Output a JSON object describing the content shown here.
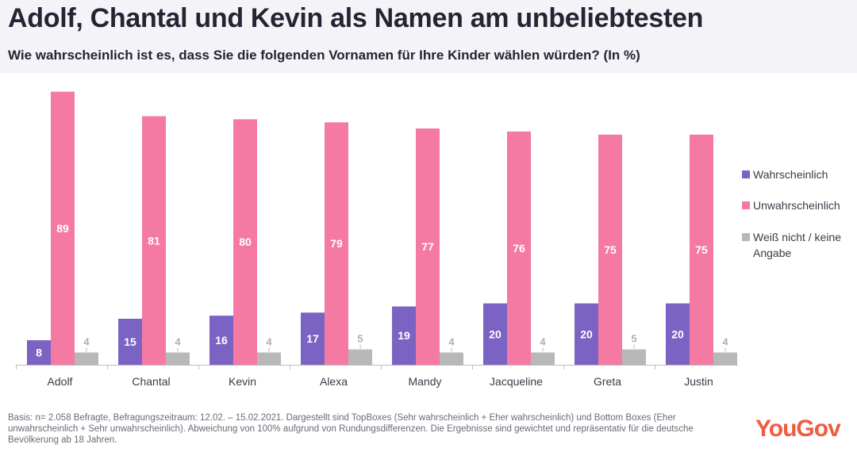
{
  "header": {
    "title": "Adolf, Chantal und Kevin als Namen am unbeliebtesten",
    "subtitle": "Wie wahrscheinlich ist es, dass Sie die folgenden Vornamen für Ihre Kinder wählen würden? (In %)"
  },
  "colors": {
    "wahrscheinlich": "#7b63c4",
    "unwahrscheinlich": "#f47aa3",
    "weiss_nicht": "#b8b8b8",
    "brand": "#f15b3f"
  },
  "chart_data": {
    "type": "bar",
    "title": "Adolf, Chantal und Kevin als Namen am unbeliebtesten",
    "subtitle": "Wie wahrscheinlich ist es, dass Sie die folgenden Vornamen für Ihre Kinder wählen würden? (In %)",
    "xlabel": "",
    "ylabel": "",
    "ylim": [
      0,
      90
    ],
    "grid": false,
    "legend_position": "right",
    "categories": [
      "Adolf",
      "Chantal",
      "Kevin",
      "Alexa",
      "Mandy",
      "Jacqueline",
      "Greta",
      "Justin"
    ],
    "series": [
      {
        "name": "Wahrscheinlich",
        "values": [
          8,
          15,
          16,
          17,
          19,
          20,
          20,
          20
        ]
      },
      {
        "name": "Unwahrscheinlich",
        "values": [
          89,
          81,
          80,
          79,
          77,
          76,
          75,
          75
        ]
      },
      {
        "name": "Weiß nicht / keine Angabe",
        "values": [
          4,
          4,
          4,
          5,
          4,
          4,
          5,
          4
        ]
      }
    ]
  },
  "legend": {
    "items": [
      {
        "label": "Wahrscheinlich"
      },
      {
        "label": "Unwahrscheinlich"
      },
      {
        "label": "Weiß nicht / keine Angabe"
      }
    ]
  },
  "footer": {
    "note": "Basis: n= 2.058 Befragte, Befragungszeitraum: 12.02. – 15.02.2021. Dargestellt sind TopBoxes (Sehr wahrscheinlich + Eher wahrscheinlich) und Bottom Boxes (Eher unwahrscheinlich + Sehr unwahrscheinlich). Abweichung von 100% aufgrund von Rundungsdifferenzen. Die Ergebnisse sind gewichtet und repräsentativ für die deutsche Bevölkerung ab 18 Jahren.",
    "brand": "YouGov"
  }
}
